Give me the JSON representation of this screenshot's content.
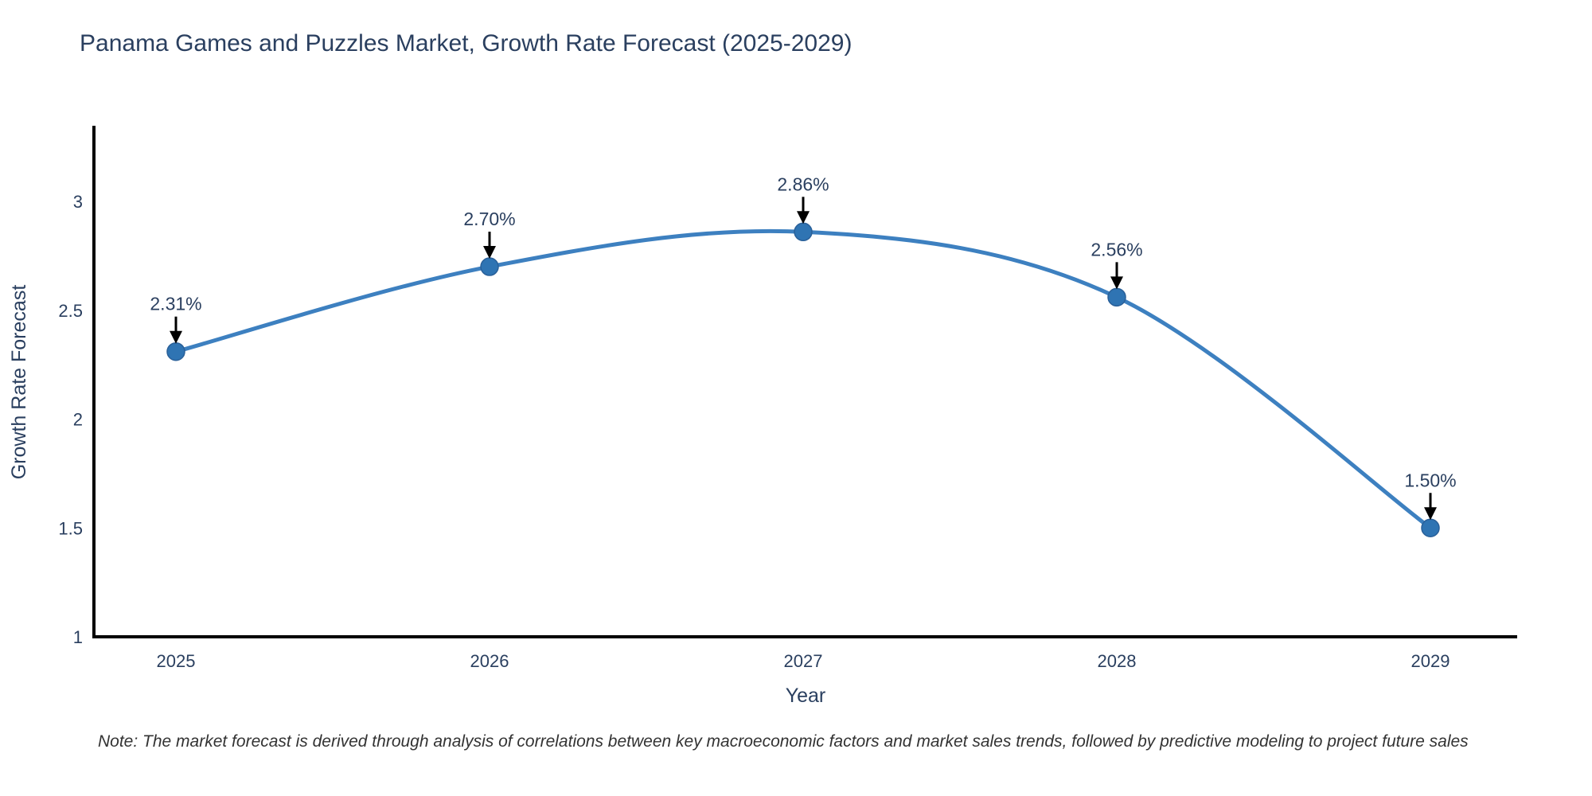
{
  "chart_data": {
    "type": "line",
    "curve": "spline",
    "title": "Panama Games and Puzzles Market, Growth Rate Forecast (2025-2029)",
    "xlabel": "Year",
    "ylabel": "Growth Rate Forecast",
    "categories": [
      "2025",
      "2026",
      "2027",
      "2028",
      "2029"
    ],
    "values": [
      2.31,
      2.7,
      2.86,
      2.56,
      1.5
    ],
    "point_labels": [
      "2.31%",
      "2.70%",
      "2.86%",
      "2.56%",
      "1.50%"
    ],
    "yticks": [
      1,
      1.5,
      2,
      2.5,
      3
    ],
    "ylim": [
      1,
      3.34
    ],
    "grid": false,
    "legend": false,
    "line_color": "#3d80c0",
    "marker_color": "#2f74b3",
    "marker_edge_color": "#2a6099",
    "arrow_color": "#000000",
    "axis_color": "#000000",
    "text_color": "#2a3f5f",
    "note": "Note: The market forecast is derived through analysis of correlations between key macroeconomic factors and market sales trends, followed by predictive modeling to project future sales"
  }
}
